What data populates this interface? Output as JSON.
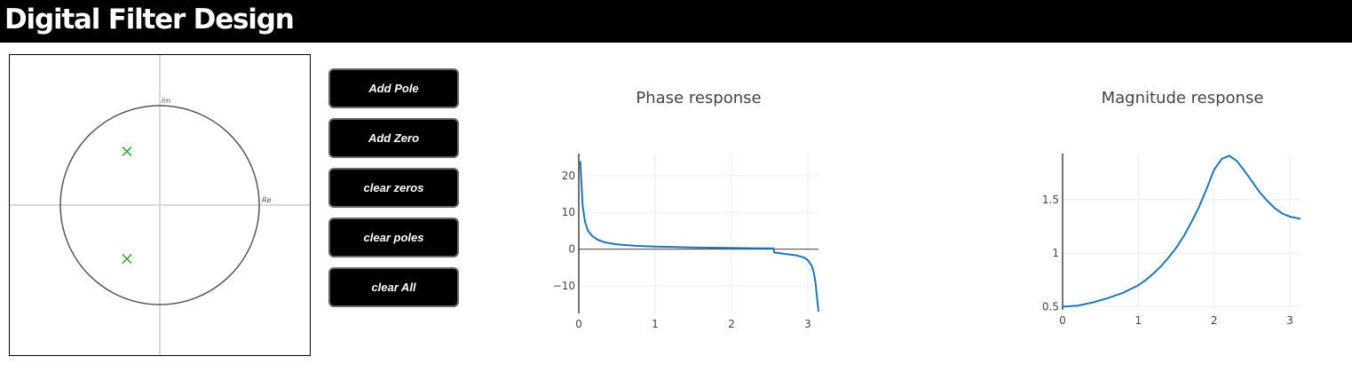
{
  "header": {
    "title": "Digital Filter Design"
  },
  "zplane": {
    "re_label": "Re",
    "im_label": "Im",
    "unit_circle_color": "#555555",
    "axis_color": "#d9d9d9",
    "marker_color": "#2ca02c",
    "poles": [
      {
        "re": -0.33,
        "im": 0.54
      },
      {
        "re": -0.33,
        "im": -0.54
      }
    ],
    "zeros": []
  },
  "controls": {
    "add_pole": "Add Pole",
    "add_zero": "Add Zero",
    "clear_zeros": "clear zeros",
    "clear_poles": "clear poles",
    "clear_all": "clear All"
  },
  "chart_data": [
    {
      "type": "line",
      "title": "Phase response",
      "xlabel": "",
      "ylabel": "",
      "xlim": [
        0,
        3.14
      ],
      "ylim": [
        -17.5,
        26
      ],
      "x_ticks": [
        0,
        1,
        2,
        3
      ],
      "y_ticks": [
        20,
        10,
        0,
        -10
      ],
      "y_tick_labels": [
        "20",
        "10",
        "0",
        "−10"
      ],
      "grid": true,
      "zero_line": true,
      "color": "#1f77b4",
      "series": [
        {
          "x": [
            0.02,
            0.05,
            0.08,
            0.12,
            0.18,
            0.25,
            0.35,
            0.5,
            0.75,
            1.0,
            1.5,
            2.0,
            2.3,
            2.55,
            2.56,
            2.7,
            2.85,
            2.95,
            3.0,
            3.05,
            3.08,
            3.1,
            3.12,
            3.14
          ],
          "y": [
            24,
            12,
            7.5,
            5,
            3.5,
            2.5,
            1.8,
            1.3,
            0.9,
            0.7,
            0.45,
            0.3,
            0.25,
            0.2,
            -0.9,
            -1.3,
            -1.7,
            -2.3,
            -3,
            -4.5,
            -6.5,
            -9,
            -13,
            -17
          ]
        }
      ]
    },
    {
      "type": "line",
      "title": "Magnitude response",
      "xlabel": "",
      "ylabel": "",
      "xlim": [
        0,
        3.14
      ],
      "ylim": [
        0.47,
        1.93
      ],
      "x_ticks": [
        0,
        1,
        2,
        3
      ],
      "y_ticks": [
        0.5,
        1,
        1.5
      ],
      "y_tick_labels": [
        "0.5",
        "1",
        "1.5"
      ],
      "grid": true,
      "zero_line": false,
      "color": "#1f77b4",
      "series": [
        {
          "x": [
            0,
            0.2,
            0.4,
            0.6,
            0.8,
            1.0,
            1.1,
            1.2,
            1.3,
            1.4,
            1.5,
            1.6,
            1.7,
            1.8,
            1.9,
            2.0,
            2.1,
            2.2,
            2.3,
            2.4,
            2.5,
            2.6,
            2.7,
            2.8,
            2.9,
            3.0,
            3.14
          ],
          "y": [
            0.5,
            0.51,
            0.54,
            0.58,
            0.63,
            0.7,
            0.75,
            0.81,
            0.88,
            0.96,
            1.05,
            1.16,
            1.29,
            1.43,
            1.6,
            1.78,
            1.88,
            1.91,
            1.86,
            1.77,
            1.67,
            1.57,
            1.49,
            1.42,
            1.37,
            1.34,
            1.32
          ]
        }
      ]
    }
  ]
}
